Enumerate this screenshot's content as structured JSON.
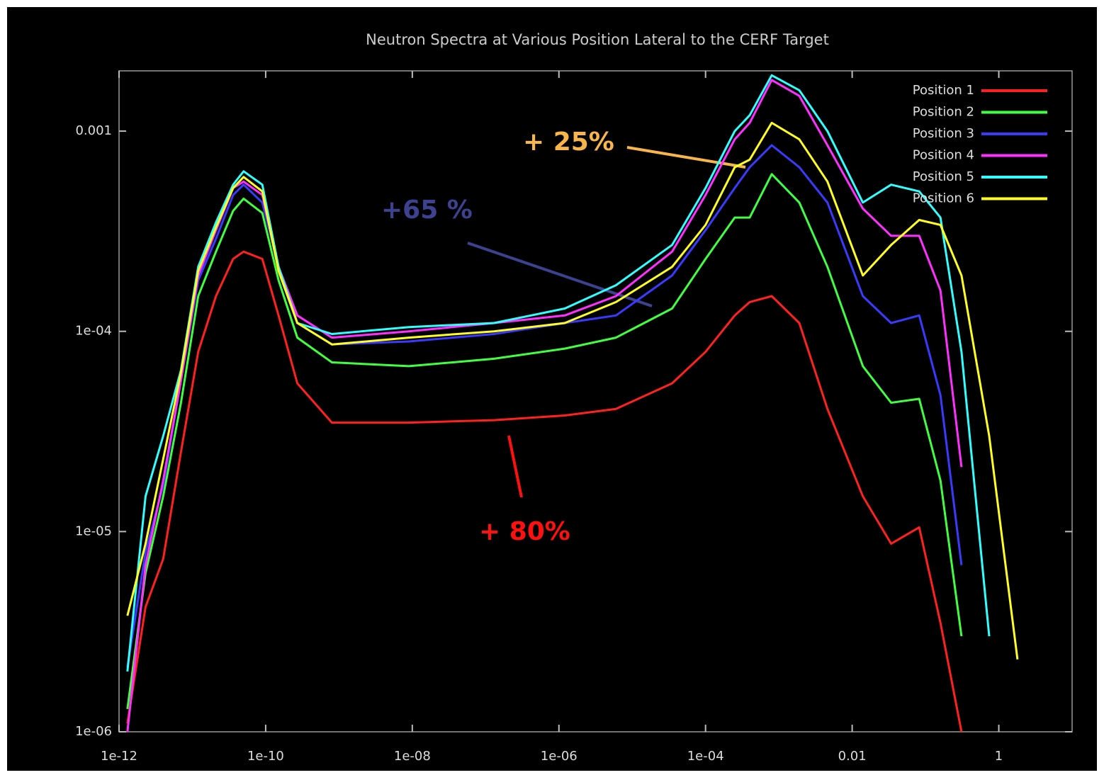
{
  "chart_data": {
    "type": "line",
    "title": "Neutron Spectra at Various Position Lateral to the CERF Target",
    "log_x": true,
    "log_y": true,
    "legend": "upper right",
    "xlim": [
      1e-12,
      10
    ],
    "ylim": [
      1e-06,
      0.002
    ],
    "xticks": [
      {
        "value": 1e-12,
        "label": "1e-12"
      },
      {
        "value": 1e-10,
        "label": "1e-10"
      },
      {
        "value": 1e-08,
        "label": "1e-08"
      },
      {
        "value": 1e-06,
        "label": "1e-06"
      },
      {
        "value": 0.0001,
        "label": "1e-04"
      },
      {
        "value": 0.01,
        "label": "0.01"
      },
      {
        "value": 1,
        "label": "1"
      }
    ],
    "yticks": [
      {
        "value": 1e-06,
        "label": "1e-06"
      },
      {
        "value": 1e-05,
        "label": "1e-05"
      },
      {
        "value": 0.0001,
        "label": "1e-04"
      },
      {
        "value": 0.001,
        "label": "0.001"
      }
    ],
    "x": [
      1.3e-12,
      2.3e-12,
      4e-12,
      7e-12,
      1.2e-11,
      2.1e-11,
      3.6e-11,
      5e-11,
      9e-11,
      1.5e-10,
      2.7e-10,
      8e-10,
      9e-09,
      1.3e-07,
      1.2e-06,
      6e-06,
      3.5e-05,
      0.0001,
      0.00025,
      0.0004,
      0.0008,
      0.0019,
      0.0046,
      0.014,
      0.034,
      0.082,
      0.16,
      0.31,
      0.74,
      1.8
    ],
    "series": [
      {
        "name": "Position 1",
        "color": "#ff2020",
        "values": [
          1.1e-06,
          4.2e-06,
          7.3e-06,
          2.5e-05,
          7.9e-05,
          0.00015,
          0.00023,
          0.00025,
          0.00023,
          0.00012,
          5.5e-05,
          3.5e-05,
          3.5e-05,
          3.6e-05,
          3.8e-05,
          4.1e-05,
          5.5e-05,
          7.9e-05,
          0.00012,
          0.00014,
          0.00015,
          0.00011,
          4.1e-05,
          1.5e-05,
          8.7e-06,
          1.05e-05,
          3.5e-06,
          1e-06,
          null,
          null
        ]
      },
      {
        "name": "Position 2",
        "color": "#40ff40",
        "values": [
          1.3e-06,
          6.2e-06,
          1.5e-05,
          4.4e-05,
          0.00015,
          0.00025,
          0.0004,
          0.00046,
          0.00039,
          0.00018,
          9.3e-05,
          7e-05,
          6.7e-05,
          7.3e-05,
          8.2e-05,
          9.3e-05,
          0.00013,
          0.00023,
          0.00037,
          0.00037,
          0.00061,
          0.00044,
          0.00021,
          6.7e-05,
          4.4e-05,
          4.6e-05,
          1.8e-05,
          3e-06,
          null,
          null
        ]
      },
      {
        "name": "Position 3",
        "color": "#3a3aff",
        "values": [
          2.1e-06,
          7.9e-06,
          1.7e-05,
          5.7e-05,
          0.00018,
          0.00029,
          0.00048,
          0.00054,
          0.00044,
          0.00021,
          0.00011,
          8.6e-05,
          8.9e-05,
          9.7e-05,
          0.00011,
          0.00012,
          0.00019,
          0.00032,
          0.00052,
          0.00066,
          0.00085,
          0.00066,
          0.00044,
          0.00015,
          0.00011,
          0.00012,
          4.8e-05,
          6.8e-06,
          null,
          null
        ]
      },
      {
        "name": "Position 4",
        "color": "#ff30ff",
        "values": [
          1e-06,
          6.8e-06,
          1.8e-05,
          5.7e-05,
          0.00019,
          0.00032,
          0.00052,
          0.00056,
          0.00048,
          0.00021,
          0.00012,
          9.3e-05,
          0.0001,
          0.00011,
          0.00012,
          0.00015,
          0.00025,
          0.00048,
          0.00091,
          0.0011,
          0.0018,
          0.0015,
          0.00085,
          0.00041,
          0.0003,
          0.0003,
          0.00016,
          2.1e-05,
          null,
          null
        ]
      },
      {
        "name": "Position 5",
        "color": "#30ffff",
        "values": [
          2e-06,
          1.5e-05,
          3e-05,
          6.4e-05,
          0.00021,
          0.00035,
          0.00054,
          0.00063,
          0.00054,
          0.00021,
          0.00011,
          9.7e-05,
          0.000105,
          0.00011,
          0.00013,
          0.00017,
          0.00027,
          0.00052,
          0.001,
          0.0012,
          0.0019,
          0.0016,
          0.001,
          0.00044,
          0.00054,
          0.0005,
          0.00037,
          7.9e-05,
          3e-06,
          null
        ]
      },
      {
        "name": "Position 6",
        "color": "#ffff20",
        "values": [
          3.8e-06,
          8.7e-06,
          2.3e-05,
          6.2e-05,
          0.0002,
          0.00033,
          0.00052,
          0.00059,
          0.0005,
          0.0002,
          0.00011,
          8.6e-05,
          9.3e-05,
          0.0001,
          0.00011,
          0.00014,
          0.00021,
          0.00034,
          0.00066,
          0.00072,
          0.0011,
          0.00091,
          0.00056,
          0.00019,
          0.00027,
          0.00036,
          0.00034,
          0.00019,
          3e-05,
          2.3e-06
        ]
      }
    ],
    "annotations": [
      {
        "text": "+ 25%",
        "color": "#f7b54a"
      },
      {
        "text": "+65 %",
        "color": "#3d4290"
      },
      {
        "text": "+ 80%",
        "color": "#ff1010"
      }
    ]
  }
}
